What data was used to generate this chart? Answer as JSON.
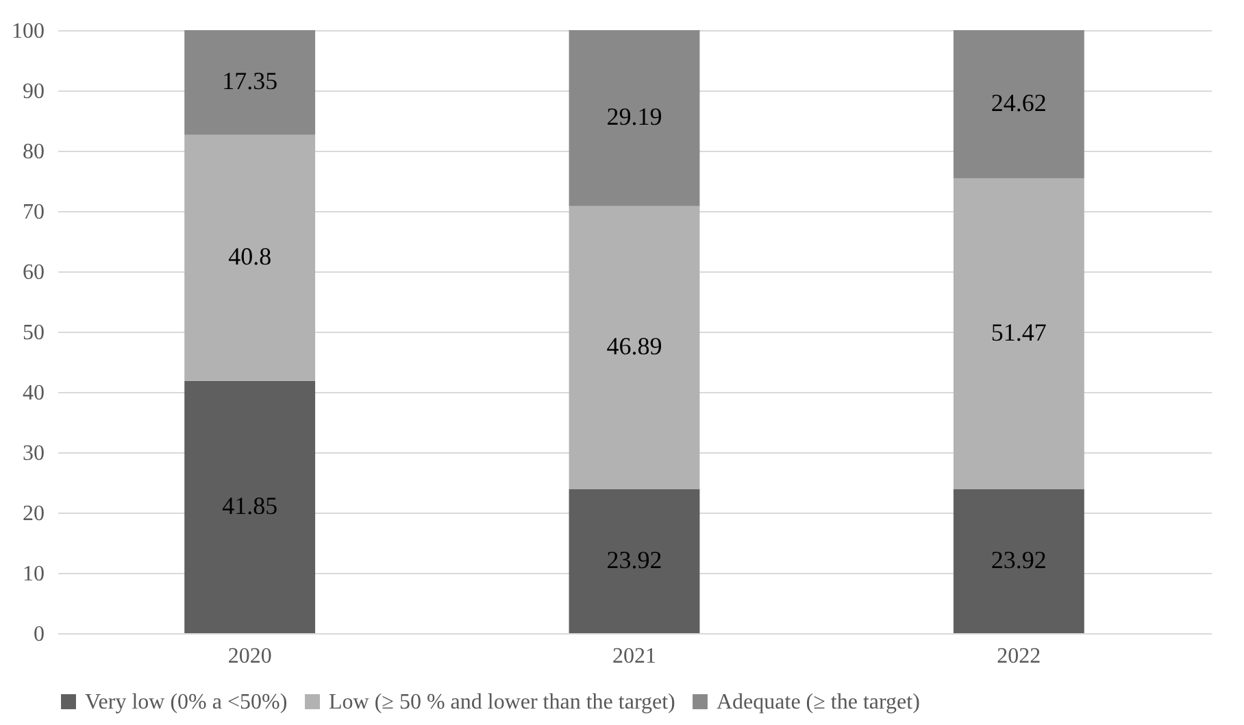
{
  "chart_data": {
    "type": "bar",
    "stacked": true,
    "categories": [
      "2020",
      "2021",
      "2022"
    ],
    "series": [
      {
        "name": "Very low (0% a <50%)",
        "color": "#5f5f5f",
        "values": [
          41.85,
          23.92,
          23.92
        ]
      },
      {
        "name": "Low (≥ 50 % and lower than the target)",
        "color": "#b2b2b2",
        "values": [
          40.8,
          46.89,
          51.47
        ]
      },
      {
        "name": "Adequate (≥  the target)",
        "color": "#898989",
        "values": [
          17.35,
          29.19,
          24.62
        ]
      }
    ],
    "ylim": [
      0,
      100
    ],
    "yticks": [
      0,
      10,
      20,
      30,
      40,
      50,
      60,
      70,
      80,
      90,
      100
    ],
    "grid": "y",
    "legend": "bottom",
    "data_labels": true
  }
}
